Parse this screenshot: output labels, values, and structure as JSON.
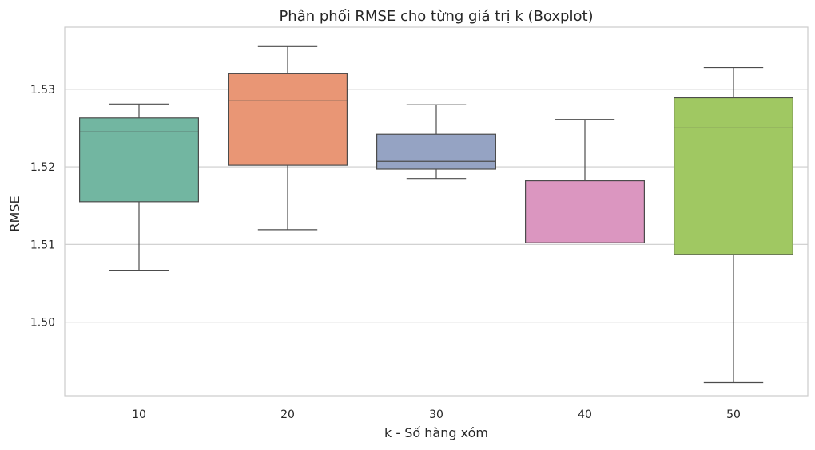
{
  "chart_data": {
    "type": "boxplot",
    "title": "Phân phối RMSE cho từng giá trị k (Boxplot)",
    "xlabel": "k - Số hàng xóm",
    "ylabel": "RMSE",
    "categories": [
      "10",
      "20",
      "30",
      "40",
      "50"
    ],
    "boxes": [
      {
        "category": "10",
        "whisker_low": 1.5066,
        "q1": 1.5155,
        "median": 1.5245,
        "q3": 1.5263,
        "whisker_high": 1.5281,
        "color": "#72b6a1"
      },
      {
        "category": "20",
        "whisker_low": 1.5119,
        "q1": 1.5202,
        "median": 1.5285,
        "q3": 1.532,
        "whisker_high": 1.5355,
        "color": "#e99675"
      },
      {
        "category": "30",
        "whisker_low": 1.5185,
        "q1": 1.5197,
        "median": 1.5207,
        "q3": 1.5242,
        "whisker_high": 1.528,
        "color": "#95a3c3"
      },
      {
        "category": "40",
        "whisker_low": 1.5102,
        "q1": 1.5102,
        "median": 1.5102,
        "q3": 1.5182,
        "whisker_high": 1.5261,
        "color": "#db96c0"
      },
      {
        "category": "50",
        "whisker_low": 1.4922,
        "q1": 1.5087,
        "median": 1.525,
        "q3": 1.5289,
        "whisker_high": 1.5328,
        "color": "#a0c862"
      }
    ],
    "yticks": [
      "1.50",
      "1.51",
      "1.52",
      "1.53"
    ],
    "ytick_values": [
      1.5,
      1.51,
      1.52,
      1.53
    ],
    "ylim": [
      1.4905,
      1.538
    ],
    "grid": true,
    "colors": {
      "edge": "#4c4c4c",
      "grid": "#cccccc",
      "frame": "#cccccc"
    }
  }
}
